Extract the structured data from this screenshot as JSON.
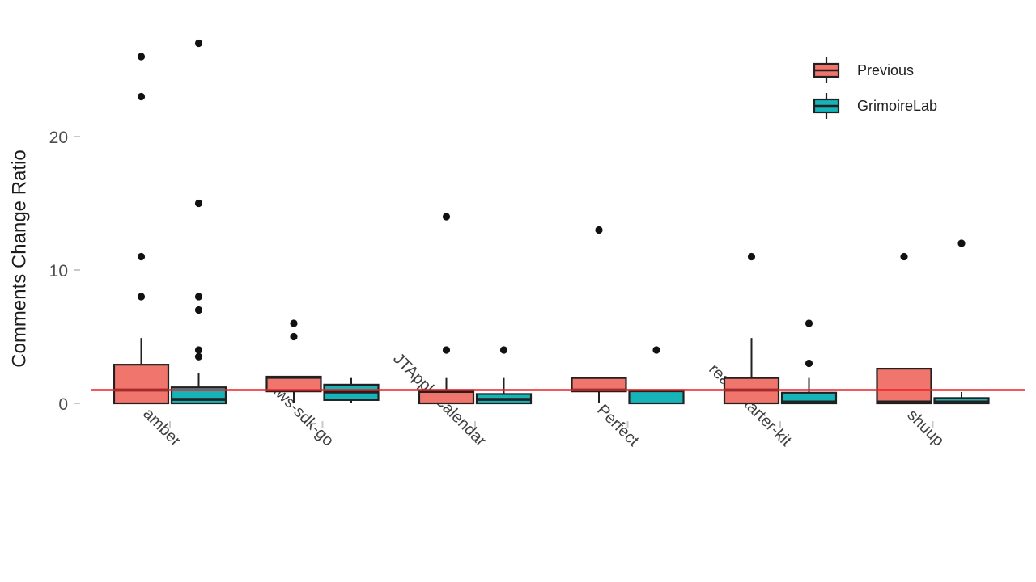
{
  "chart_data": {
    "type": "boxplot",
    "title": "",
    "xlabel": "",
    "ylabel": "Comments Change Ratio",
    "ylim": [
      -0.6,
      29
    ],
    "yticks": [
      0,
      10,
      20
    ],
    "grid": false,
    "legend_position": "top-right",
    "categories": [
      "amber",
      "aws-sdk-go",
      "JTAppleCalendar",
      "Perfect",
      "react-starter-kit",
      "shuup"
    ],
    "reference_line": {
      "y": 1,
      "color": "#EC2227"
    },
    "series": [
      {
        "name": "Previous",
        "color": "#F0756C",
        "boxes": [
          {
            "low": 0,
            "q1": 0,
            "median": 1.0,
            "q3": 2.9,
            "high": 4.9,
            "outliers": [
              8,
              11,
              23,
              26
            ]
          },
          {
            "low": 0,
            "q1": 0.9,
            "median": 1.95,
            "q3": 2.0,
            "high": 2.0,
            "outliers": [
              5,
              6
            ]
          },
          {
            "low": 0,
            "q1": 0,
            "median": 0.9,
            "q3": 1.0,
            "high": 1.9,
            "outliers": [
              4,
              14
            ]
          },
          {
            "low": 0,
            "q1": 0.9,
            "median": 1.0,
            "q3": 1.9,
            "high": 1.9,
            "outliers": [
              13
            ]
          },
          {
            "low": 0,
            "q1": 0,
            "median": 1.0,
            "q3": 1.9,
            "high": 4.9,
            "outliers": [
              11
            ]
          },
          {
            "low": 0,
            "q1": 0,
            "median": 0.1,
            "q3": 2.6,
            "high": 2.6,
            "outliers": [
              11
            ]
          }
        ]
      },
      {
        "name": "GrimoireLab",
        "color": "#16B3B9",
        "boxes": [
          {
            "low": 0,
            "q1": 0,
            "median": 0.3,
            "q3": 1.2,
            "high": 2.3,
            "outliers": [
              3.5,
              4,
              7,
              8,
              15,
              27
            ]
          },
          {
            "low": 0,
            "q1": 0.25,
            "median": 0.85,
            "q3": 1.4,
            "high": 1.9,
            "outliers": []
          },
          {
            "low": 0,
            "q1": 0,
            "median": 0.3,
            "q3": 0.7,
            "high": 1.9,
            "outliers": [
              4
            ]
          },
          {
            "low": 0,
            "q1": 0,
            "median": 0.95,
            "q3": 1.0,
            "high": 1.0,
            "outliers": [
              4
            ]
          },
          {
            "low": 0,
            "q1": 0,
            "median": 0.1,
            "q3": 0.8,
            "high": 1.9,
            "outliers": [
              3,
              6
            ]
          },
          {
            "low": 0,
            "q1": 0,
            "median": 0.1,
            "q3": 0.4,
            "high": 0.85,
            "outliers": [
              12
            ]
          }
        ]
      }
    ]
  }
}
